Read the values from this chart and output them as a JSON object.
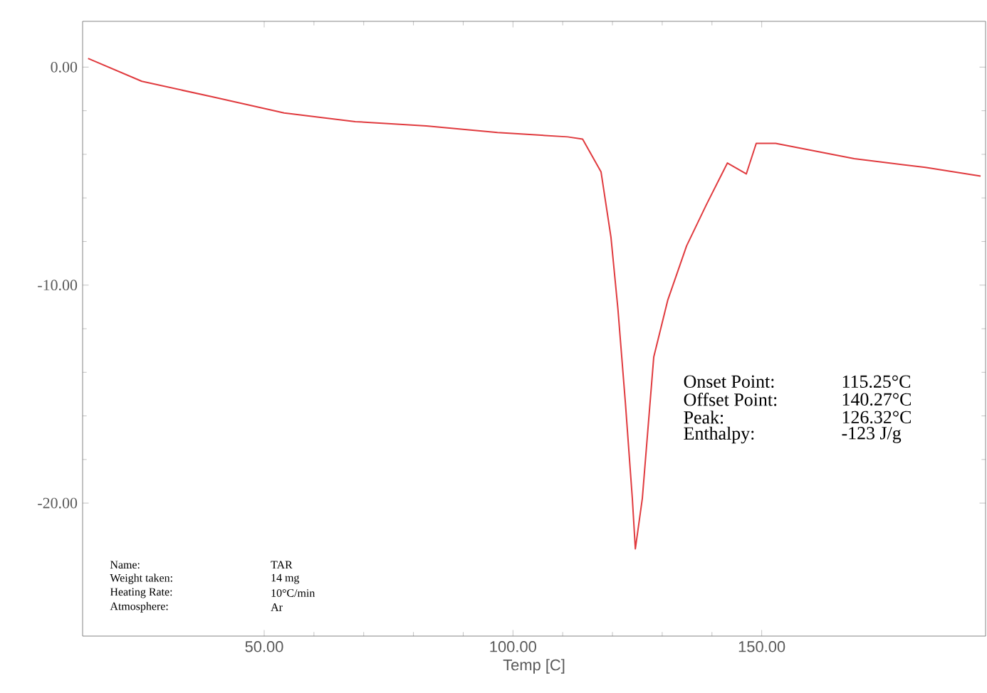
{
  "chart_data": {
    "type": "line",
    "xlabel": "Temp [C]",
    "x": [
      14.6,
      25.4,
      39.7,
      54,
      68.3,
      82.6,
      96.9,
      111,
      114,
      117.7,
      119.7,
      121.1,
      122.6,
      124,
      124.6,
      126,
      128.3,
      131.1,
      134.9,
      138.9,
      143.1,
      146.9,
      148.9,
      152.8,
      168.6,
      182.9,
      194
    ],
    "series": [
      {
        "color": "#e03a3e",
        "values": [
          0.4,
          -0.65,
          -1.37,
          -2.1,
          -2.5,
          -2.7,
          -3.0,
          -3.2,
          -3.3,
          -4.8,
          -7.8,
          -11.1,
          -15.4,
          -19.8,
          -22.1,
          -19.8,
          -13.3,
          -10.7,
          -8.2,
          -6.3,
          -4.4,
          -4.9,
          -3.5,
          -3.5,
          -4.2,
          -4.6,
          -5.0
        ]
      }
    ],
    "xlim": [
      13.5,
      195
    ],
    "ylim": [
      -26.1,
      2.1
    ],
    "xticks": [
      {
        "value": 50,
        "label": "50.00"
      },
      {
        "value": 100,
        "label": "100.00"
      },
      {
        "value": 150,
        "label": "150.00"
      }
    ],
    "yticks": [
      {
        "value": 0,
        "label": "0.00"
      },
      {
        "value": -10,
        "label": "-10.00"
      },
      {
        "value": -20,
        "label": "-20.00"
      }
    ],
    "annotations": [
      "Onset Point:",
      "115.25°C",
      "Offset Point:",
      "140.27°C",
      "Peak:",
      "126.32°C",
      "Enthalpy:",
      "-123 J/g",
      "Name:",
      "TAR",
      "Weight taken:",
      "14 mg",
      "Heating Rate:",
      "10°C/min",
      "Atmosphere:",
      "Ar"
    ],
    "grid": false,
    "marker": "none",
    "line_style": "solid"
  }
}
